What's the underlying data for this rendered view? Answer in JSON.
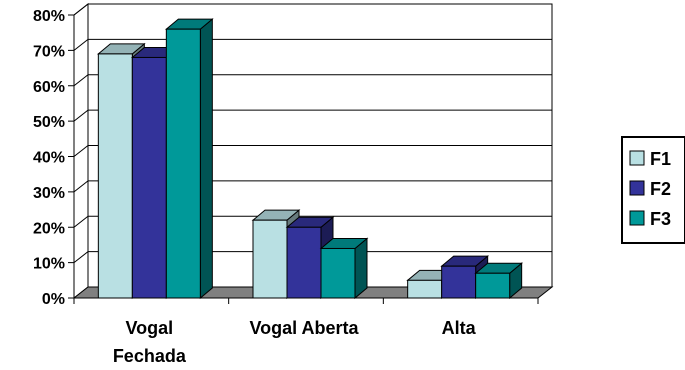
{
  "chart_data": {
    "type": "bar",
    "title": "",
    "xlabel": "",
    "ylabel": "",
    "categories": [
      [
        "Vogal",
        "Fechada"
      ],
      [
        "Vogal Aberta"
      ],
      [
        "Alta"
      ]
    ],
    "ylim": [
      0,
      80
    ],
    "yticks": [
      "0%",
      "10%",
      "20%",
      "30%",
      "40%",
      "50%",
      "60%",
      "70%",
      "80%"
    ],
    "grid": true,
    "legend_position": "right",
    "series": [
      {
        "name": "F1",
        "color": "#b9e0e3",
        "values": [
          69,
          22,
          5
        ]
      },
      {
        "name": "F2",
        "color": "#33339a",
        "values": [
          68,
          20,
          9
        ]
      },
      {
        "name": "F3",
        "color": "#009999",
        "values": [
          76,
          14,
          7
        ]
      }
    ]
  }
}
